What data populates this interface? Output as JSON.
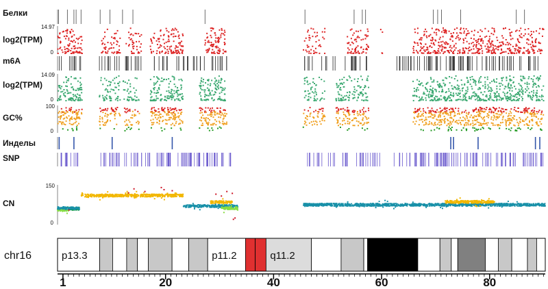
{
  "chart_data": {
    "type": "genome-track-view",
    "chromosome": "chr16",
    "x_range": [
      1,
      90.3
    ],
    "x_ticks": [
      1,
      20,
      40,
      60,
      80
    ],
    "colors": {
      "proteins": "#444444",
      "expr_protein": "#dd2222",
      "m6a": "#222222",
      "expr_m6a": "#3aa870",
      "gc_high": "#dd2222",
      "gc_mid": "#f0a020",
      "gc_low": "#229922",
      "indel": "#3355aa",
      "snp": "#6655cc",
      "cn_blue": "#1890a8",
      "cn_yellow": "#f2b700",
      "cn_green": "#88dd44",
      "cn_red": "#cc1122",
      "cn_darkgreen": "#119944"
    },
    "regions": [
      [
        1,
        34
      ],
      [
        46,
        90.3
      ]
    ],
    "tracks": [
      {
        "key": "proteins",
        "label": "Белки",
        "type": "ticks",
        "color": "proteins",
        "positions": [
          1.2,
          2.8,
          4.0,
          4.4,
          5.3,
          8.8,
          10.6,
          12.9,
          14.8,
          28.0,
          46.3,
          55.3,
          56.8,
          57.4,
          69.8,
          70.6,
          71.3,
          74.8,
          85.0,
          86.5
        ]
      },
      {
        "key": "expr1",
        "label": "log2(TPM)",
        "type": "scatter",
        "ymax_label": "14.97",
        "ymin_label": "0",
        "color": "expr_protein",
        "density": [
          [
            1,
            5.5,
            0.9
          ],
          [
            8.6,
            12.5,
            0.6
          ],
          [
            13.5,
            16.5,
            0.6
          ],
          [
            18,
            24,
            0.9
          ],
          [
            28,
            32,
            1.0
          ],
          [
            46,
            50,
            0.5
          ],
          [
            54,
            58,
            0.8
          ],
          [
            60,
            61,
            0.2
          ],
          [
            66,
            90,
            0.9
          ]
        ]
      },
      {
        "key": "m6a",
        "label": "m6A",
        "type": "ticks",
        "color": "m6a",
        "dense": true,
        "density": [
          [
            1,
            5.5,
            0.8
          ],
          [
            8.6,
            12.5,
            0.8
          ],
          [
            13,
            17,
            1.0
          ],
          [
            18,
            22,
            0.7
          ],
          [
            22,
            32,
            0.8
          ],
          [
            46,
            58,
            0.6
          ],
          [
            63,
            80,
            1.0
          ],
          [
            80,
            90,
            0.8
          ]
        ]
      },
      {
        "key": "expr2",
        "label": "log2(TPM)",
        "type": "scatter",
        "ymax_label": "14.09",
        "ymin_label": "0",
        "color": "expr_m6a",
        "density": [
          [
            1,
            5.5,
            1.0
          ],
          [
            8.6,
            12.5,
            0.7
          ],
          [
            13,
            16,
            0.6
          ],
          [
            18,
            24,
            1.0
          ],
          [
            27,
            32,
            1.0
          ],
          [
            46,
            50,
            0.6
          ],
          [
            52,
            58,
            0.8
          ],
          [
            66,
            90,
            1.0
          ]
        ]
      },
      {
        "key": "gc",
        "label": "GC%",
        "type": "gc",
        "ymax_label": "100",
        "ymin_label": "0",
        "density": [
          [
            1,
            5.5,
            1.0
          ],
          [
            8.6,
            12.5,
            0.7
          ],
          [
            13,
            16,
            0.6
          ],
          [
            18,
            24,
            1.0
          ],
          [
            27,
            32,
            1.0
          ],
          [
            46,
            50,
            0.6
          ],
          [
            52,
            58,
            0.8
          ],
          [
            66,
            90,
            1.0
          ]
        ]
      },
      {
        "key": "indels",
        "label": "Инделы",
        "type": "ticks",
        "color": "indel",
        "thick": true,
        "positions": [
          1.3,
          4.0,
          11.0,
          22.0,
          73.0,
          73.5,
          78.0,
          88.5,
          89.3
        ]
      },
      {
        "key": "snp",
        "label": "SNP",
        "type": "ticks",
        "color": "snp",
        "density": [
          [
            1,
            5.5,
            0.8
          ],
          [
            8.6,
            13,
            0.8
          ],
          [
            13,
            18,
            0.7
          ],
          [
            18,
            25,
            0.9
          ],
          [
            25,
            33,
            0.9
          ],
          [
            46,
            52,
            0.5
          ],
          [
            52,
            60,
            0.7
          ],
          [
            60,
            66,
            0.3
          ],
          [
            66,
            76,
            1.0
          ],
          [
            76,
            84,
            0.9
          ],
          [
            84,
            90,
            0.9
          ]
        ]
      },
      {
        "key": "cn",
        "label": "CN",
        "type": "cn",
        "ymax_label": "150",
        "ymin_label": "0",
        "segments": [
          {
            "from": 1,
            "to": 3,
            "level": 55,
            "color": "cn_green"
          },
          {
            "from": 3,
            "to": 5,
            "level": 60,
            "color": "cn_darkgreen"
          },
          {
            "from": 1,
            "to": 5,
            "level": 62,
            "color": "cn_blue"
          },
          {
            "from": 5.3,
            "to": 5.7,
            "level": 115,
            "color": "cn_yellow"
          },
          {
            "from": 6,
            "to": 24,
            "level": 110,
            "color": "cn_yellow"
          },
          {
            "from": 24,
            "to": 34,
            "level": 70,
            "color": "cn_blue"
          },
          {
            "from": 29,
            "to": 33,
            "level": 85,
            "color": "cn_yellow"
          },
          {
            "from": 31,
            "to": 34,
            "level": 62,
            "color": "cn_green"
          },
          {
            "from": 46,
            "to": 90.3,
            "level": 75,
            "color": "cn_blue"
          },
          {
            "from": 72,
            "to": 81,
            "level": 86,
            "color": "cn_yellow"
          }
        ],
        "outliers_red": [
          [
            14,
            120
          ],
          [
            15,
            135
          ],
          [
            17,
            125
          ],
          [
            20,
            140
          ],
          [
            20.5,
            132
          ],
          [
            22,
            128
          ],
          [
            30,
            115
          ],
          [
            31,
            108
          ],
          [
            32,
            125
          ],
          [
            33,
            118
          ],
          [
            33.5,
            25
          ],
          [
            33.2,
            20
          ],
          [
            3.1,
            55
          ]
        ]
      }
    ],
    "ideogram": {
      "length": 90.3,
      "bands": [
        {
          "from": 0,
          "to": 7.8,
          "stain": "gneg",
          "label": "p13.3"
        },
        {
          "from": 7.8,
          "to": 10.2,
          "stain": "gpos25"
        },
        {
          "from": 10.2,
          "to": 12.8,
          "stain": "gneg"
        },
        {
          "from": 12.8,
          "to": 14.8,
          "stain": "gpos25"
        },
        {
          "from": 14.8,
          "to": 16.8,
          "stain": "gneg"
        },
        {
          "from": 16.8,
          "to": 21.2,
          "stain": "gpos25"
        },
        {
          "from": 21.2,
          "to": 24.3,
          "stain": "gneg"
        },
        {
          "from": 24.3,
          "to": 27.8,
          "stain": "gpos25"
        },
        {
          "from": 27.8,
          "to": 34.8,
          "stain": "gneg",
          "label": "p11.2"
        },
        {
          "from": 34.8,
          "to": 36.6,
          "stain": "acen"
        },
        {
          "from": 36.6,
          "to": 38.6,
          "stain": "acen"
        },
        {
          "from": 38.6,
          "to": 47.0,
          "stain": "gvar",
          "label": "q11.2"
        },
        {
          "from": 47.0,
          "to": 52.5,
          "stain": "gneg"
        },
        {
          "from": 52.5,
          "to": 56.7,
          "stain": "gpos25"
        },
        {
          "from": 56.7,
          "to": 57.4,
          "stain": "gneg"
        },
        {
          "from": 57.4,
          "to": 66.7,
          "stain": "gpos100"
        },
        {
          "from": 66.7,
          "to": 70.8,
          "stain": "gneg"
        },
        {
          "from": 70.8,
          "to": 72.9,
          "stain": "gpos25"
        },
        {
          "from": 72.9,
          "to": 74.1,
          "stain": "gneg"
        },
        {
          "from": 74.1,
          "to": 79.2,
          "stain": "gpos75"
        },
        {
          "from": 79.2,
          "to": 81.6,
          "stain": "gneg"
        },
        {
          "from": 81.6,
          "to": 84.1,
          "stain": "gpos25"
        },
        {
          "from": 84.1,
          "to": 87.0,
          "stain": "gneg"
        },
        {
          "from": 87.0,
          "to": 88.7,
          "stain": "gpos25"
        },
        {
          "from": 88.7,
          "to": 90.3,
          "stain": "gneg"
        }
      ],
      "stain_colors": {
        "gneg": "#ffffff",
        "gpos25": "#c8c8c8",
        "gpos75": "#808080",
        "gpos100": "#000000",
        "acen": "#e03030",
        "gvar": "#dcdcdc"
      }
    }
  }
}
